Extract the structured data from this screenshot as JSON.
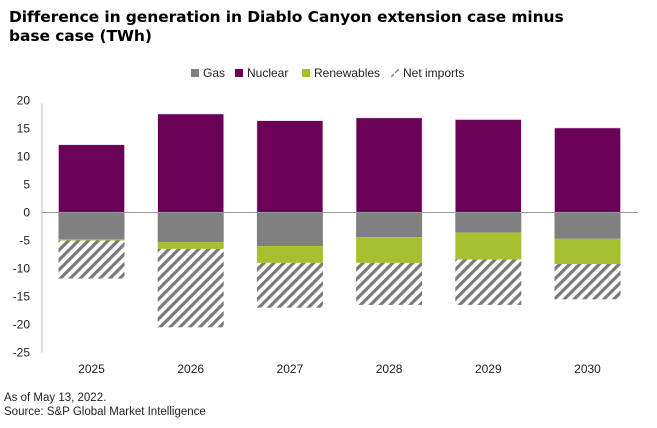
{
  "chart_data": {
    "type": "bar",
    "stacked": true,
    "title": "Difference in generation in Diablo Canyon extension case minus base case (TWh)",
    "xlabel": "",
    "ylabel": "",
    "categories": [
      "2025",
      "2026",
      "2027",
      "2028",
      "2029",
      "2030"
    ],
    "ylim": [
      -25,
      20
    ],
    "yticks": [
      20,
      15,
      10,
      5,
      0,
      -5,
      -10,
      -15,
      -20,
      -25
    ],
    "ytick_labels": [
      "20",
      "15",
      "10",
      "5",
      "0",
      "-5",
      "-10",
      "-15",
      "-20",
      "-25"
    ],
    "grid": false,
    "legend_position": "top-center",
    "series": [
      {
        "name": "Gas",
        "color": "#808080",
        "pattern": "solid",
        "values": [
          -4.8,
          -5.3,
          -6.0,
          -4.4,
          -3.6,
          -4.7
        ]
      },
      {
        "name": "Nuclear",
        "color": "#6b0057",
        "pattern": "solid",
        "values": [
          12.1,
          17.6,
          16.4,
          16.9,
          16.6,
          15.1
        ]
      },
      {
        "name": "Renewables",
        "color": "#a6c030",
        "pattern": "solid",
        "values": [
          -0.2,
          -1.2,
          -3.0,
          -4.6,
          -4.8,
          -4.5
        ]
      },
      {
        "name": "Net imports",
        "color": "#7a7a7a",
        "pattern": "diagonal-hatch",
        "values": [
          -6.8,
          -14.0,
          -8.0,
          -7.5,
          -8.1,
          -6.3
        ]
      }
    ],
    "notes": [
      "As of May 13, 2022.",
      "Source: S&P Global Market Intelligence"
    ]
  }
}
